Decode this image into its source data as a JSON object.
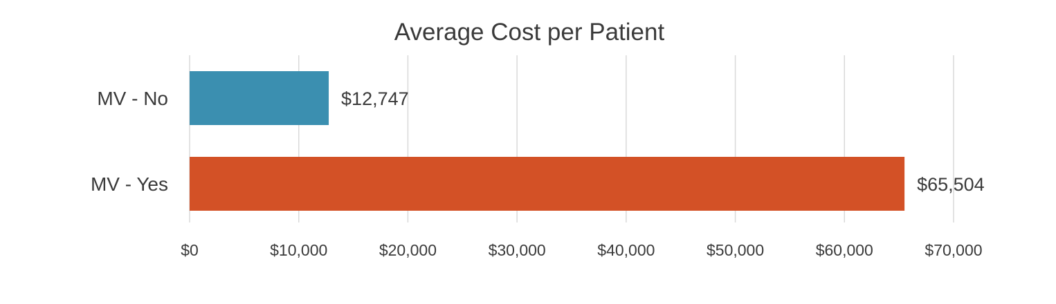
{
  "chart_data": {
    "type": "bar",
    "orientation": "horizontal",
    "title": "Average Cost per Patient",
    "xlabel": "",
    "ylabel": "",
    "categories": [
      "MV - No",
      "MV - Yes"
    ],
    "values": [
      12747,
      65504
    ],
    "value_labels": [
      "$12,747",
      "$65,504"
    ],
    "colors": [
      "#3b8fb0",
      "#d35126"
    ],
    "xlim": [
      0,
      70000
    ],
    "ticks": [
      0,
      10000,
      20000,
      30000,
      40000,
      50000,
      60000,
      70000
    ],
    "tick_labels": [
      "$0",
      "$10,000",
      "$20,000",
      "$30,000",
      "$40,000",
      "$50,000",
      "$60,000",
      "$70,000"
    ],
    "grid": true,
    "legend": "none"
  }
}
